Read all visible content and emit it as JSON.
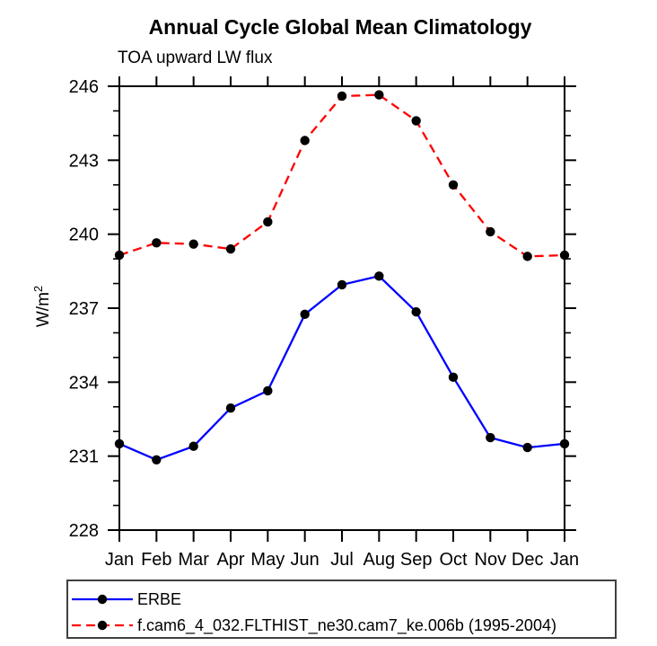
{
  "title": "Annual Cycle Global Mean Climatology",
  "subtitle": "TOA upward LW flux",
  "ylabel": "W/m",
  "ylabel_exponent": "2",
  "colors": {
    "erbe_line": "#0000ff",
    "model_line": "#ff0000",
    "marker": "#000000",
    "axis": "#000000",
    "legend_border": "#404040",
    "background": "#ffffff"
  },
  "chart_data": {
    "type": "line",
    "categories": [
      "Jan",
      "Feb",
      "Mar",
      "Apr",
      "May",
      "Jun",
      "Jul",
      "Aug",
      "Sep",
      "Oct",
      "Nov",
      "Dec",
      "Jan"
    ],
    "series": [
      {
        "name": "ERBE",
        "color": "#0000ff",
        "style": "solid",
        "marker": "circle",
        "marker_color": "#000000",
        "values": [
          231.5,
          230.85,
          231.4,
          232.95,
          233.65,
          236.75,
          237.95,
          238.3,
          236.85,
          234.2,
          231.75,
          231.35,
          231.5
        ]
      },
      {
        "name": "f.cam6_4_032.FLTHIST_ne30.cam7_ke.006b (1995-2004)",
        "color": "#ff0000",
        "style": "dashed",
        "marker": "circle",
        "marker_color": "#000000",
        "values": [
          239.15,
          239.65,
          239.6,
          239.4,
          240.5,
          243.8,
          245.6,
          245.65,
          244.6,
          242.0,
          240.1,
          239.1,
          239.15
        ]
      }
    ],
    "ylim": [
      228,
      246
    ],
    "yticks": [
      228,
      231,
      234,
      237,
      240,
      243,
      246
    ],
    "ytick_minor_step": 1,
    "grid": false,
    "legend_position": "bottom"
  }
}
